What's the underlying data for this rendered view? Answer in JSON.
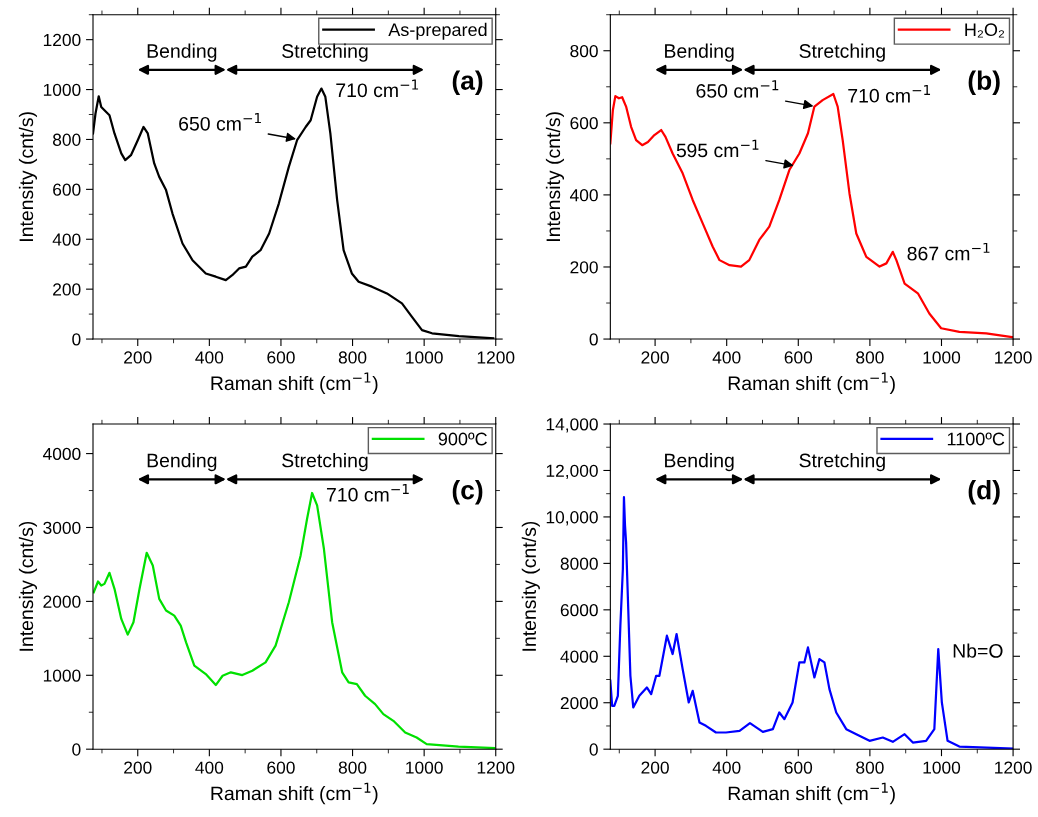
{
  "chart_data": [
    {
      "type": "line",
      "xlabel": "Raman shift (cm$^{−1}$)",
      "ylabel": "Intensity (cnt/s)",
      "xlim": [
        75,
        1200
      ],
      "xticks": [
        200,
        400,
        600,
        800,
        1000,
        1200
      ],
      "ylim": [
        0,
        1300
      ],
      "yticks": [
        0,
        200,
        400,
        600,
        800,
        1000,
        1200
      ],
      "grid": false,
      "legend": "top right",
      "series": [
        {
          "name": "As-prepared",
          "color": "#000000",
          "x": [
            75,
            82,
            91,
            98,
            107,
            121,
            135,
            154,
            165,
            181,
            200,
            216,
            228,
            246,
            260,
            279,
            297,
            325,
            353,
            390,
            418,
            446,
            464,
            483,
            502,
            520,
            543,
            567,
            594,
            622,
            645,
            669,
            683,
            701,
            713,
            724,
            738,
            757,
            775,
            798,
            817,
            854,
            896,
            938,
            966,
            994,
            1022,
            1097,
            1193
          ],
          "values": [
            824,
            904,
            973,
            930,
            917,
            897,
            824,
            744,
            717,
            737,
            797,
            850,
            824,
            704,
            650,
            597,
            503,
            383,
            316,
            263,
            250,
            236,
            256,
            283,
            290,
            330,
            356,
            423,
            543,
            690,
            797,
            850,
            877,
            971,
            1004,
            971,
            824,
            557,
            356,
            263,
            230,
            210,
            183,
            143,
            89,
            36,
            23,
            12,
            3
          ]
        }
      ],
      "annotations": [
        "Bending",
        "Stretching",
        {
          "text": "710 cm$^{−1}$",
          "x": 713,
          "y": 1004
        },
        {
          "text": "650 cm$^{−1}$",
          "x": 650,
          "y": 800
        },
        "(a)"
      ]
    },
    {
      "type": "line",
      "xlabel": "Raman shift (cm$^{−1}$)",
      "ylabel": "Intensity (cnt/s)",
      "xlim": [
        75,
        1200
      ],
      "xticks": [
        200,
        400,
        600,
        800,
        1000,
        1200
      ],
      "ylim": [
        0,
        900
      ],
      "yticks": [
        0,
        200,
        400,
        600,
        800
      ],
      "grid": false,
      "legend": "top right",
      "series": [
        {
          "name": "H₂O₂",
          "color": "#ff0000",
          "x": [
            75,
            82,
            89,
            99,
            108,
            119,
            133,
            147,
            164,
            180,
            198,
            217,
            229,
            249,
            277,
            305,
            333,
            361,
            380,
            408,
            440,
            463,
            491,
            519,
            547,
            575,
            603,
            627,
            645,
            668,
            698,
            710,
            724,
            743,
            762,
            790,
            827,
            846,
            864,
            874,
            897,
            934,
            966,
            999,
            1050,
            1125,
            1199
          ],
          "values": [
            543,
            635,
            674,
            668,
            671,
            645,
            589,
            552,
            538,
            547,
            566,
            580,
            561,
            515,
            460,
            386,
            321,
            256,
            219,
            205,
            201,
            219,
            275,
            312,
            386,
            469,
            515,
            571,
            645,
            663,
            680,
            645,
            552,
            404,
            293,
            228,
            201,
            210,
            242,
            219,
            154,
            127,
            71,
            30,
            20,
            16,
            5
          ]
        }
      ],
      "annotations": [
        "Bending",
        "Stretching",
        {
          "text": "710 cm$^{−1}$",
          "x": 698,
          "y": 680
        },
        {
          "text": "595 cm$^{−1}$",
          "x": 595,
          "y": 480
        },
        {
          "text": "650 cm$^{−1}$",
          "x": 650,
          "y": 645
        },
        {
          "text": "867 cm$^{−1}$",
          "x": 864,
          "y": 242
        },
        "(b)"
      ]
    },
    {
      "type": "line",
      "xlabel": "Raman shift (cm$^{−1}$)",
      "ylabel": "Intensity (cnt/s)",
      "xlim": [
        75,
        1200
      ],
      "xticks": [
        200,
        400,
        600,
        800,
        1000,
        1200
      ],
      "ylim": [
        0,
        4400
      ],
      "yticks": [
        0,
        1000,
        2000,
        3000,
        4000
      ],
      "grid": false,
      "legend": "top right",
      "series": [
        {
          "name": "900ºC",
          "color": "#00e000",
          "x": [
            77,
            89,
            98,
            107,
            121,
            135,
            154,
            172,
            188,
            205,
            225,
            242,
            260,
            279,
            302,
            320,
            335,
            358,
            390,
            418,
            437,
            460,
            492,
            520,
            557,
            585,
            622,
            655,
            673,
            687,
            701,
            720,
            743,
            771,
            789,
            812,
            835,
            863,
            886,
            914,
            947,
            979,
            1007,
            1096,
            1196
          ],
          "values": [
            2124,
            2269,
            2215,
            2237,
            2387,
            2170,
            1763,
            1550,
            1718,
            2170,
            2658,
            2486,
            2034,
            1876,
            1808,
            1672,
            1446,
            1130,
            1017,
            868,
            994,
            1040,
            1003,
            1062,
            1175,
            1401,
            1989,
            2622,
            3119,
            3467,
            3300,
            2712,
            1718,
            1040,
            904,
            881,
            723,
            610,
            475,
            384,
            226,
            158,
            68,
            36,
            14
          ]
        }
      ],
      "annotations": [
        "Bending",
        "Stretching",
        {
          "text": "710 cm$^{−1}$",
          "x": 687,
          "y": 3467
        },
        "(c)"
      ]
    },
    {
      "type": "line",
      "xlabel": "Raman shift (cm$^{−1}$)",
      "ylabel": "Intensity (cnt/s)",
      "xlim": [
        75,
        1200
      ],
      "xticks": [
        200,
        400,
        600,
        800,
        1000,
        1200
      ],
      "ylim": [
        0,
        14000
      ],
      "yticks": [
        0,
        2000,
        4000,
        6000,
        8000,
        {
          "value": 10000,
          "label": "10,000"
        },
        {
          "value": 12000,
          "label": "12,000"
        },
        {
          "value": 14000,
          "label": "14,000"
        }
      ],
      "grid": false,
      "legend": "top right",
      "series": [
        {
          "name": "1100ºC",
          "color": "#0000ff",
          "x": [
            75,
            80,
            86,
            96,
            103,
            110,
            113,
            116,
            119,
            125,
            131,
            139,
            156,
            177,
            189,
            203,
            212,
            233,
            249,
            260,
            277,
            294,
            305,
            324,
            342,
            370,
            398,
            436,
            465,
            501,
            529,
            547,
            561,
            584,
            603,
            617,
            627,
            645,
            659,
            673,
            687,
            706,
            734,
            762,
            799,
            836,
            864,
            897,
            920,
            957,
            980,
            991,
            1001,
            1017,
            1050,
            1199
          ],
          "values": [
            2946,
            1868,
            1868,
            2299,
            5317,
            7760,
            10849,
            9628,
            8909,
            6035,
            3161,
            1796,
            2299,
            2658,
            2371,
            3161,
            3161,
            4886,
            4096,
            4958,
            3449,
            2012,
            2515,
            1150,
            1006,
            719,
            719,
            790,
            1121,
            747,
            862,
            1581,
            1293,
            2012,
            3736,
            3736,
            4383,
            3090,
            3880,
            3736,
            2587,
            1581,
            862,
            647,
            359,
            503,
            316,
            647,
            287,
            359,
            862,
            4311,
            2012,
            359,
            115,
            29
          ]
        }
      ],
      "annotations": [
        "Bending",
        "Stretching",
        {
          "text": "Nb=O",
          "x": 991,
          "y": 4311
        },
        "(d)"
      ]
    }
  ]
}
